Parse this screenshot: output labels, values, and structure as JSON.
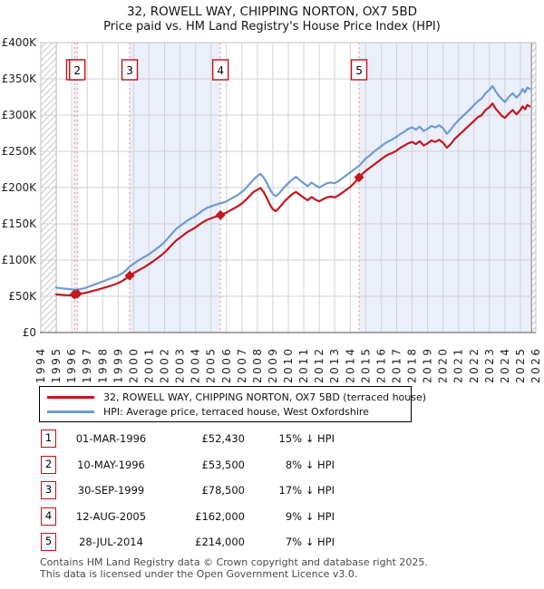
{
  "title": "32, ROWELL WAY, CHIPPING NORTON, OX7 5BD",
  "subtitle": "Price paid vs. HM Land Registry's House Price Index (HPI)",
  "legend": {
    "series1": "32, ROWELL WAY, CHIPPING NORTON, OX7 5BD (terraced house)",
    "series2": "HPI: Average price, terraced house, West Oxfordshire"
  },
  "transactions": [
    {
      "num": "1",
      "date": "01-MAR-1996",
      "price": "£52,430",
      "vs_hpi": "15% ↓ HPI"
    },
    {
      "num": "2",
      "date": "10-MAY-1996",
      "price": "£53,500",
      "vs_hpi": "8% ↓ HPI"
    },
    {
      "num": "3",
      "date": "30-SEP-1999",
      "price": "£78,500",
      "vs_hpi": "17% ↓ HPI"
    },
    {
      "num": "4",
      "date": "12-AUG-2005",
      "price": "£162,000",
      "vs_hpi": "9% ↓ HPI"
    },
    {
      "num": "5",
      "date": "28-JUL-2014",
      "price": "£214,000",
      "vs_hpi": "7% ↓ HPI"
    }
  ],
  "footer": {
    "line1": "Contains HM Land Registry data © Crown copyright and database right 2025.",
    "line2": "This data is licensed under the Open Government Licence v3.0."
  },
  "colors": {
    "price_line": "#c4161d",
    "hpi_line": "#6e9bd3",
    "shade": "#eaeffa",
    "dash_line": "#f0908f",
    "grid": "#d2d2d2",
    "plot_border": "#c0c0c0",
    "axis": "#8a8a8a",
    "hatch_line": "#c9c9c9",
    "hatch_border": "#909090",
    "marker_box_border": "#bf1217",
    "tick_text": "#222222"
  },
  "chart_data": {
    "type": "line",
    "title": "32, ROWELL WAY, CHIPPING NORTON, OX7 5BD — Price paid vs. HPI",
    "xlabel": "",
    "ylabel": "",
    "grid": true,
    "legend_position": "below",
    "x_range": [
      1994,
      2026
    ],
    "y_range_thousands": [
      0,
      400
    ],
    "y_ticks": [
      {
        "value": 0,
        "label": "£0"
      },
      {
        "value": 50,
        "label": "£50K"
      },
      {
        "value": 100,
        "label": "£100K"
      },
      {
        "value": 150,
        "label": "£150K"
      },
      {
        "value": 200,
        "label": "£200K"
      },
      {
        "value": 250,
        "label": "£250K"
      },
      {
        "value": 300,
        "label": "£300K"
      },
      {
        "value": 350,
        "label": "£350K"
      },
      {
        "value": 400,
        "label": "£400K"
      }
    ],
    "x_ticks": [
      "1994",
      "1995",
      "1996",
      "1997",
      "1998",
      "1999",
      "2000",
      "2001",
      "2002",
      "2003",
      "2004",
      "2005",
      "2006",
      "2007",
      "2008",
      "2009",
      "2010",
      "2011",
      "2012",
      "2013",
      "2014",
      "2015",
      "2016",
      "2017",
      "2018",
      "2019",
      "2020",
      "2021",
      "2022",
      "2023",
      "2024",
      "2025",
      "2026"
    ],
    "shaded_periods": [
      [
        1996.17,
        1996.36
      ],
      [
        1999.75,
        2005.61
      ],
      [
        2014.57,
        2025.72
      ]
    ],
    "hatch_periods": [
      [
        1994,
        1995
      ],
      [
        2025.72,
        2026
      ]
    ],
    "sale_marker_numbers": [
      "1",
      "2",
      "3",
      "4",
      "5"
    ],
    "series": [
      {
        "name": "HPI: Average price, terraced house, West Oxfordshire",
        "color_key": "hpi_line",
        "points": [
          [
            1995,
            62
          ],
          [
            1995.25,
            61.2
          ],
          [
            1995.5,
            60.6
          ],
          [
            1995.75,
            60.1
          ],
          [
            1996,
            59.5
          ],
          [
            1996.25,
            59
          ],
          [
            1996.5,
            59.8
          ],
          [
            1996.75,
            60.8
          ],
          [
            1997,
            62.5
          ],
          [
            1997.25,
            64.5
          ],
          [
            1997.5,
            66.5
          ],
          [
            1997.75,
            68.5
          ],
          [
            1998,
            70.5
          ],
          [
            1998.25,
            72.5
          ],
          [
            1998.5,
            74.5
          ],
          [
            1998.75,
            76.5
          ],
          [
            1999,
            78.5
          ],
          [
            1999.25,
            81.5
          ],
          [
            1999.5,
            85.5
          ],
          [
            1999.75,
            91
          ],
          [
            2000,
            95
          ],
          [
            2000.25,
            98.5
          ],
          [
            2000.5,
            102
          ],
          [
            2000.75,
            105
          ],
          [
            2001,
            108
          ],
          [
            2001.25,
            112
          ],
          [
            2001.5,
            116
          ],
          [
            2001.75,
            120
          ],
          [
            2002,
            125
          ],
          [
            2002.25,
            131
          ],
          [
            2002.5,
            137
          ],
          [
            2002.75,
            143
          ],
          [
            2003,
            147
          ],
          [
            2003.25,
            151
          ],
          [
            2003.5,
            155
          ],
          [
            2003.75,
            158
          ],
          [
            2004,
            161
          ],
          [
            2004.25,
            165
          ],
          [
            2004.5,
            169
          ],
          [
            2004.75,
            172
          ],
          [
            2005,
            174
          ],
          [
            2005.25,
            176
          ],
          [
            2005.5,
            177.5
          ],
          [
            2005.75,
            179
          ],
          [
            2006,
            181
          ],
          [
            2006.25,
            184
          ],
          [
            2006.5,
            187
          ],
          [
            2006.75,
            190
          ],
          [
            2007,
            194
          ],
          [
            2007.25,
            199
          ],
          [
            2007.5,
            205
          ],
          [
            2007.75,
            211
          ],
          [
            2008,
            216
          ],
          [
            2008.2,
            219
          ],
          [
            2008.4,
            214
          ],
          [
            2008.6,
            207
          ],
          [
            2008.8,
            198
          ],
          [
            2009,
            191
          ],
          [
            2009.2,
            188
          ],
          [
            2009.4,
            192
          ],
          [
            2009.6,
            197
          ],
          [
            2009.8,
            202
          ],
          [
            2010,
            206
          ],
          [
            2010.25,
            211
          ],
          [
            2010.5,
            215
          ],
          [
            2010.75,
            210
          ],
          [
            2011,
            206
          ],
          [
            2011.25,
            202
          ],
          [
            2011.5,
            207
          ],
          [
            2011.75,
            203
          ],
          [
            2012,
            200
          ],
          [
            2012.25,
            203
          ],
          [
            2012.5,
            206
          ],
          [
            2012.75,
            207
          ],
          [
            2013,
            206
          ],
          [
            2013.25,
            209
          ],
          [
            2013.5,
            213
          ],
          [
            2013.75,
            217
          ],
          [
            2014,
            221
          ],
          [
            2014.25,
            225
          ],
          [
            2014.57,
            230
          ],
          [
            2014.75,
            234
          ],
          [
            2015,
            240
          ],
          [
            2015.25,
            244
          ],
          [
            2015.5,
            249
          ],
          [
            2015.75,
            253
          ],
          [
            2016,
            257
          ],
          [
            2016.25,
            261
          ],
          [
            2016.5,
            264
          ],
          [
            2016.75,
            267
          ],
          [
            2017,
            270
          ],
          [
            2017.25,
            274
          ],
          [
            2017.5,
            277
          ],
          [
            2017.75,
            281
          ],
          [
            2018,
            283
          ],
          [
            2018.25,
            280
          ],
          [
            2018.5,
            284
          ],
          [
            2018.75,
            278
          ],
          [
            2019,
            281
          ],
          [
            2019.25,
            285
          ],
          [
            2019.5,
            283
          ],
          [
            2019.75,
            286
          ],
          [
            2020,
            282
          ],
          [
            2020.25,
            274
          ],
          [
            2020.5,
            280
          ],
          [
            2020.75,
            287
          ],
          [
            2021,
            293
          ],
          [
            2021.25,
            298
          ],
          [
            2021.5,
            303
          ],
          [
            2021.75,
            308
          ],
          [
            2022,
            314
          ],
          [
            2022.25,
            319
          ],
          [
            2022.5,
            323
          ],
          [
            2022.75,
            330
          ],
          [
            2023,
            335
          ],
          [
            2023.2,
            340
          ],
          [
            2023.4,
            333
          ],
          [
            2023.6,
            327
          ],
          [
            2023.8,
            322
          ],
          [
            2024,
            318
          ],
          [
            2024.25,
            325
          ],
          [
            2024.5,
            330
          ],
          [
            2024.75,
            324
          ],
          [
            2025,
            330
          ],
          [
            2025.15,
            336
          ],
          [
            2025.3,
            331
          ],
          [
            2025.45,
            338
          ],
          [
            2025.6,
            336
          ]
        ]
      },
      {
        "name": "32, ROWELL WAY, CHIPPING NORTON, OX7 5BD (terraced house)",
        "color_key": "price_line",
        "points": [
          [
            1995,
            52.5
          ],
          [
            1995.25,
            52.2
          ],
          [
            1995.5,
            51.8
          ],
          [
            1995.75,
            51.5
          ],
          [
            1996,
            51.2
          ],
          [
            1996.17,
            52.4
          ],
          [
            1996.36,
            53.5
          ],
          [
            1996.5,
            53.2
          ],
          [
            1996.75,
            54.2
          ],
          [
            1997,
            55.4
          ],
          [
            1997.25,
            56.8
          ],
          [
            1997.5,
            58.2
          ],
          [
            1997.75,
            59.6
          ],
          [
            1998,
            61.2
          ],
          [
            1998.25,
            62.8
          ],
          [
            1998.5,
            64.4
          ],
          [
            1998.75,
            66.2
          ],
          [
            1999,
            68.2
          ],
          [
            1999.25,
            71
          ],
          [
            1999.5,
            74.5
          ],
          [
            1999.75,
            78.5
          ],
          [
            2000,
            82
          ],
          [
            2000.25,
            85
          ],
          [
            2000.5,
            88
          ],
          [
            2000.75,
            91
          ],
          [
            2001,
            94.5
          ],
          [
            2001.25,
            98
          ],
          [
            2001.5,
            102
          ],
          [
            2001.75,
            106
          ],
          [
            2002,
            110.5
          ],
          [
            2002.25,
            116
          ],
          [
            2002.5,
            121.5
          ],
          [
            2002.75,
            127
          ],
          [
            2003,
            131
          ],
          [
            2003.25,
            135
          ],
          [
            2003.5,
            139
          ],
          [
            2003.75,
            142
          ],
          [
            2004,
            145
          ],
          [
            2004.25,
            149
          ],
          [
            2004.5,
            152.5
          ],
          [
            2004.75,
            155.5
          ],
          [
            2005,
            157.5
          ],
          [
            2005.25,
            159.5
          ],
          [
            2005.61,
            162
          ],
          [
            2005.75,
            163.5
          ],
          [
            2006,
            165.5
          ],
          [
            2006.25,
            168.5
          ],
          [
            2006.5,
            171.5
          ],
          [
            2006.75,
            174.5
          ],
          [
            2007,
            178
          ],
          [
            2007.25,
            183
          ],
          [
            2007.5,
            188.5
          ],
          [
            2007.75,
            194
          ],
          [
            2008,
            197
          ],
          [
            2008.2,
            199.5
          ],
          [
            2008.4,
            194
          ],
          [
            2008.6,
            186
          ],
          [
            2008.8,
            177
          ],
          [
            2009,
            170
          ],
          [
            2009.2,
            167.5
          ],
          [
            2009.4,
            172
          ],
          [
            2009.6,
            177
          ],
          [
            2009.8,
            182
          ],
          [
            2010,
            186
          ],
          [
            2010.25,
            191
          ],
          [
            2010.5,
            194
          ],
          [
            2010.75,
            190
          ],
          [
            2011,
            186
          ],
          [
            2011.25,
            182.5
          ],
          [
            2011.5,
            187
          ],
          [
            2011.75,
            183.5
          ],
          [
            2012,
            181
          ],
          [
            2012.25,
            184
          ],
          [
            2012.5,
            186.5
          ],
          [
            2012.75,
            187.5
          ],
          [
            2013,
            186.5
          ],
          [
            2013.25,
            189.5
          ],
          [
            2013.5,
            193
          ],
          [
            2013.75,
            197
          ],
          [
            2014,
            201
          ],
          [
            2014.25,
            206
          ],
          [
            2014.57,
            214
          ],
          [
            2014.75,
            218
          ],
          [
            2015,
            223
          ],
          [
            2015.25,
            227
          ],
          [
            2015.5,
            231
          ],
          [
            2015.75,
            235
          ],
          [
            2016,
            239
          ],
          [
            2016.25,
            243
          ],
          [
            2016.5,
            246
          ],
          [
            2016.75,
            248
          ],
          [
            2017,
            251
          ],
          [
            2017.25,
            255
          ],
          [
            2017.5,
            258
          ],
          [
            2017.75,
            261
          ],
          [
            2018,
            263
          ],
          [
            2018.25,
            260
          ],
          [
            2018.5,
            264
          ],
          [
            2018.75,
            258
          ],
          [
            2019,
            261
          ],
          [
            2019.25,
            265
          ],
          [
            2019.5,
            263
          ],
          [
            2019.75,
            266
          ],
          [
            2020,
            262
          ],
          [
            2020.25,
            255
          ],
          [
            2020.5,
            260
          ],
          [
            2020.75,
            267
          ],
          [
            2021,
            272
          ],
          [
            2021.25,
            277
          ],
          [
            2021.5,
            282
          ],
          [
            2021.75,
            287
          ],
          [
            2022,
            292
          ],
          [
            2022.25,
            297
          ],
          [
            2022.5,
            300
          ],
          [
            2022.75,
            307
          ],
          [
            2023,
            311
          ],
          [
            2023.2,
            316
          ],
          [
            2023.4,
            309
          ],
          [
            2023.6,
            304
          ],
          [
            2023.8,
            299
          ],
          [
            2024,
            296
          ],
          [
            2024.25,
            302
          ],
          [
            2024.5,
            307
          ],
          [
            2024.75,
            301
          ],
          [
            2025,
            307
          ],
          [
            2025.15,
            312
          ],
          [
            2025.3,
            308
          ],
          [
            2025.45,
            314
          ],
          [
            2025.6,
            312
          ]
        ]
      }
    ]
  }
}
